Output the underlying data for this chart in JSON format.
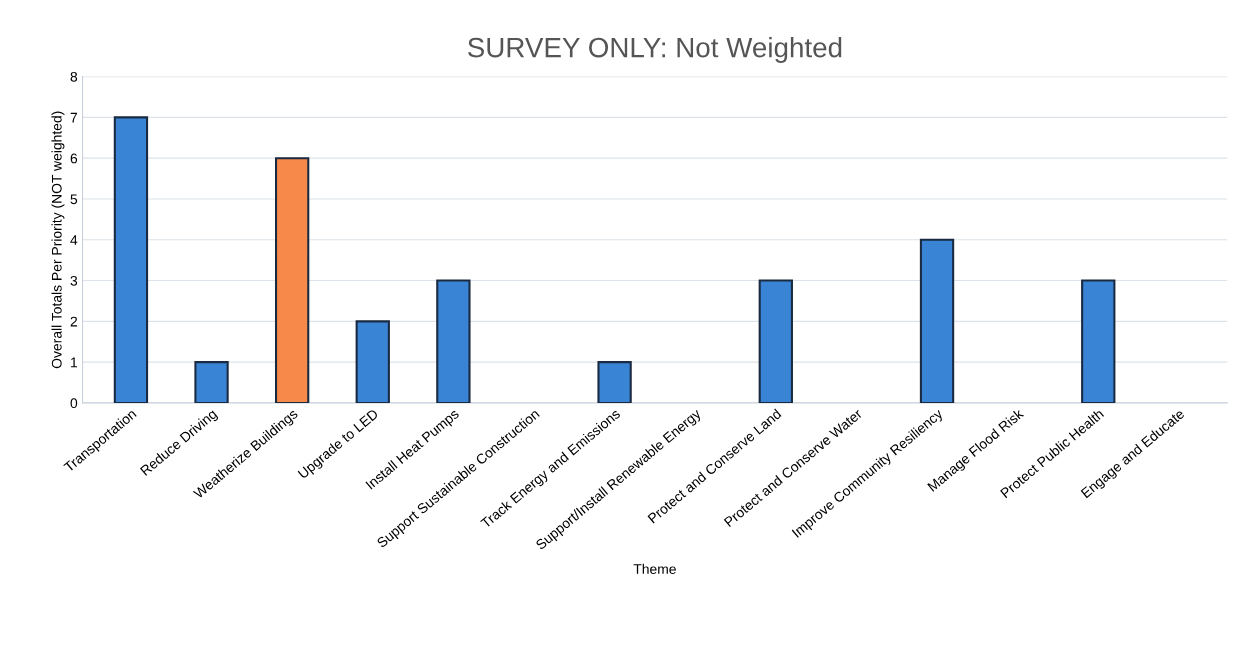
{
  "chart_data": {
    "type": "bar",
    "title": "SURVEY ONLY: Not Weighted",
    "xlabel": "Theme",
    "ylabel": "Overall Totals Per Priority (NOT weighted)",
    "categories": [
      "Transportation",
      "Reduce Driving",
      "Weatherize Buildings",
      "Upgrade to LED",
      "Install Heat Pumps",
      "Support Sustainable Construction",
      "Track Energy and Emissions",
      "Support/Install Renewable Energy",
      "Protect and Conserve Land",
      "Protect and Conserve Water",
      "Improve Community Resiliency",
      "Manage Flood Risk",
      "Protect Public Health",
      "Engage and Educate"
    ],
    "values": [
      7,
      1,
      6,
      2,
      3,
      0,
      1,
      0,
      3,
      0,
      4,
      0,
      3,
      0
    ],
    "colors": [
      "#3a84d6",
      "#3a84d6",
      "#f7894a",
      "#3a84d6",
      "#3a84d6",
      "#3a84d6",
      "#3a84d6",
      "#3a84d6",
      "#3a84d6",
      "#3a84d6",
      "#3a84d6",
      "#3a84d6",
      "#3a84d6",
      "#3a84d6"
    ],
    "ylim": [
      0,
      8
    ],
    "yticks": [
      0,
      1,
      2,
      3,
      4,
      5,
      6,
      7,
      8
    ],
    "grid": "y"
  }
}
